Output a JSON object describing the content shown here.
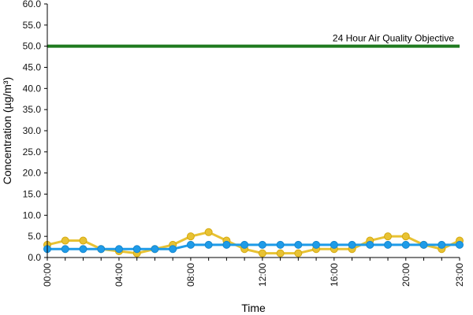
{
  "chart_data": {
    "type": "line",
    "title": "",
    "xlabel": "Time",
    "ylabel": "Concentration (µg/m³)",
    "ylim": [
      0,
      60
    ],
    "y_ticks": [
      "0.0",
      "5.0",
      "10.0",
      "15.0",
      "20.0",
      "25.0",
      "30.0",
      "35.0",
      "40.0",
      "45.0",
      "50.0",
      "55.0",
      "60.0"
    ],
    "x": [
      "00:00",
      "01:00",
      "02:00",
      "03:00",
      "04:00",
      "05:00",
      "06:00",
      "07:00",
      "08:00",
      "09:00",
      "10:00",
      "11:00",
      "12:00",
      "13:00",
      "14:00",
      "15:00",
      "16:00",
      "17:00",
      "18:00",
      "19:00",
      "20:00",
      "21:00",
      "22:00",
      "23:00"
    ],
    "x_tick_labels": [
      "00:00",
      "04:00",
      "08:00",
      "12:00",
      "16:00",
      "20:00",
      "23:00"
    ],
    "grid": false,
    "legend": "none",
    "series": [
      {
        "color": "#e8c233",
        "values": [
          3,
          4,
          4,
          2,
          1.5,
          1,
          2,
          3,
          5,
          6,
          4,
          2,
          1,
          1,
          1,
          2,
          2,
          2,
          4,
          5,
          5,
          3,
          2,
          4
        ]
      },
      {
        "color": "#1e9be8",
        "values": [
          2,
          2,
          2,
          2,
          2,
          2,
          2,
          2,
          3,
          3,
          3,
          3,
          3,
          3,
          3,
          3,
          3,
          3,
          3,
          3,
          3,
          3,
          3,
          3
        ]
      }
    ],
    "reference_line": {
      "label": "24 Hour Air Quality Objective",
      "value": 50,
      "color": "#1f7a1f"
    }
  }
}
